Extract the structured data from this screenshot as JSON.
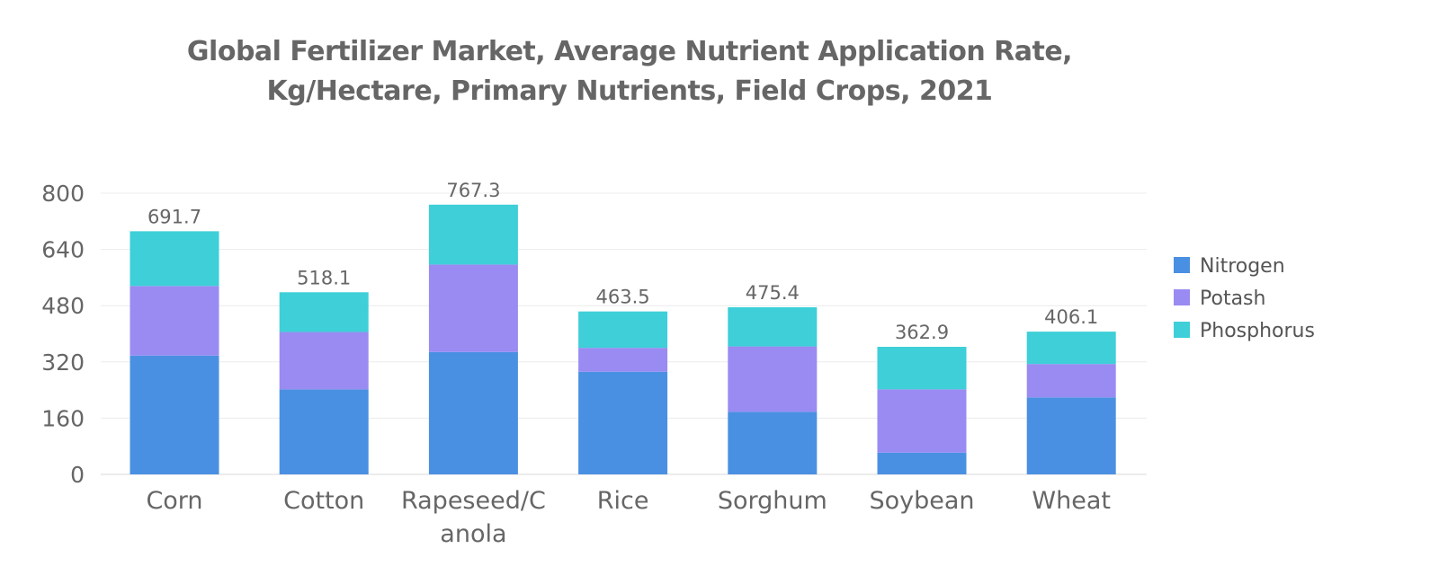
{
  "chart_data": {
    "type": "bar",
    "stacked": true,
    "title_lines": [
      "Global Fertilizer Market, Average Nutrient Application Rate,",
      "Kg/Hectare, Primary Nutrients, Field Crops, 2021"
    ],
    "categories": [
      [
        "Corn"
      ],
      [
        "Cotton"
      ],
      [
        "Rapeseed/C",
        "anola"
      ],
      [
        "Rice"
      ],
      [
        "Sorghum"
      ],
      [
        "Soybean"
      ],
      [
        "Wheat"
      ]
    ],
    "series": [
      {
        "name": "Nitrogen",
        "color": "#4A90E2",
        "values": [
          338,
          242,
          348,
          292,
          178,
          62,
          219
        ]
      },
      {
        "name": "Potash",
        "color": "#998BF2",
        "values": [
          198,
          163,
          249,
          68,
          186,
          180,
          95
        ]
      },
      {
        "name": "Phosphorus",
        "color": "#3ECFD8",
        "values": [
          155.7,
          113.1,
          170.3,
          103.5,
          111.4,
          120.9,
          92.1
        ]
      }
    ],
    "totals": [
      "691.7",
      "518.1",
      "767.3",
      "463.5",
      "475.4",
      "362.9",
      "406.1"
    ],
    "y_ticks": [
      0,
      160,
      320,
      480,
      640,
      800
    ],
    "ylim": [
      0,
      800
    ],
    "grid": true,
    "legend_position": "right"
  }
}
